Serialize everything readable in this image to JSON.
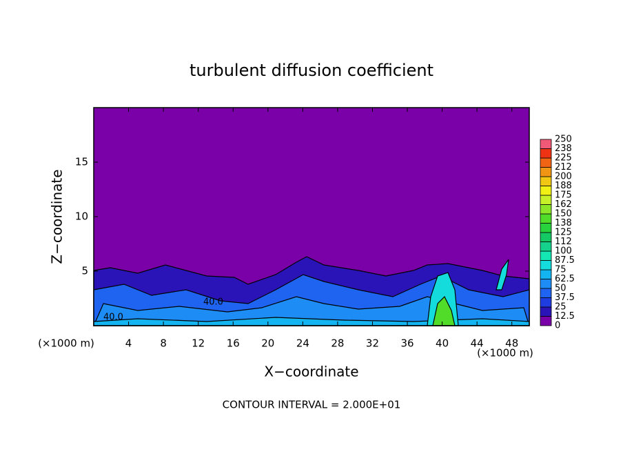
{
  "chart_data": {
    "type": "contour",
    "title": "turbulent diffusion coefficient",
    "x_label": "X−coordinate",
    "y_label": "Z−coordinate",
    "x_unit": "(×1000 m)",
    "footer": "CONTOUR INTERVAL = 2.000E+01",
    "annotations": [
      "40.0",
      "40.0"
    ],
    "xlim": [
      0,
      50
    ],
    "xticks": [
      4,
      8,
      12,
      16,
      20,
      24,
      28,
      32,
      36,
      40,
      44,
      48
    ],
    "ylim": [
      0,
      20
    ],
    "yticks": [
      5,
      10,
      15
    ],
    "colorbar": {
      "levels": [
        0,
        12.5,
        25,
        37.5,
        50,
        62.5,
        75,
        87.5,
        100,
        {
          "value": 112.5,
          "label": "112"
        },
        125,
        {
          "value": 137.5,
          "label": "138"
        },
        150,
        {
          "value": 162.5,
          "label": "162"
        },
        175,
        {
          "value": 187.5,
          "label": "188"
        },
        200,
        {
          "value": 212.5,
          "label": "212"
        },
        225,
        {
          "value": 237.5,
          "label": "238"
        },
        250
      ],
      "colors": [
        "#7a00a8",
        "#2a14b8",
        "#1e3ce0",
        "#1e64f0",
        "#1e8cf5",
        "#14b4f0",
        "#14dcdc",
        "#14e6b4",
        "#14d28c",
        "#14c864",
        "#28d23c",
        "#50dc28",
        "#8ce628",
        "#c8f028",
        "#f0f014",
        "#f0c814",
        "#f09614",
        "#f06414",
        "#f03214",
        "#f05a78"
      ]
    }
  }
}
